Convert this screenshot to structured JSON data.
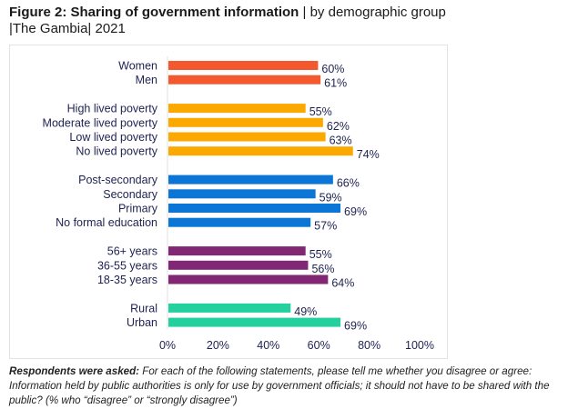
{
  "title": {
    "bold": "Figure 2: Sharing of government information",
    "rest_line1": " | by demographic group",
    "rest_line2": "|The Gambia| 2021"
  },
  "chart_data": {
    "type": "bar",
    "orientation": "horizontal",
    "xlim": [
      0,
      100
    ],
    "x_ticks": [
      "0%",
      "20%",
      "40%",
      "60%",
      "80%",
      "100%"
    ],
    "grid": false,
    "groups": [
      {
        "color": "#F4582F",
        "categories": [
          "Women",
          "Men"
        ],
        "values": [
          60,
          61
        ]
      },
      {
        "color": "#FBA800",
        "categories": [
          "High lived poverty",
          "Moderate lived poverty",
          "Low lived poverty",
          "No lived poverty"
        ],
        "values": [
          55,
          62,
          63,
          74
        ]
      },
      {
        "color": "#0B76D6",
        "categories": [
          "Post-secondary",
          "Secondary",
          "Primary",
          "No formal education"
        ],
        "values": [
          66,
          59,
          69,
          57
        ]
      },
      {
        "color": "#812773",
        "categories": [
          "56+ years",
          "36-55 years",
          "18-35 years"
        ],
        "values": [
          55,
          56,
          64
        ]
      },
      {
        "color": "#24D19E",
        "categories": [
          "Rural",
          "Urban"
        ],
        "values": [
          49,
          69
        ]
      }
    ]
  },
  "note": {
    "bold": "Respondents were asked:",
    "text": " For each of the following statements, please tell me whether you disagree or agree: Information held by public authorities is only for use by government officials; it should not have to be shared with the public? (% who “disagree” or “strongly disagree”)"
  }
}
